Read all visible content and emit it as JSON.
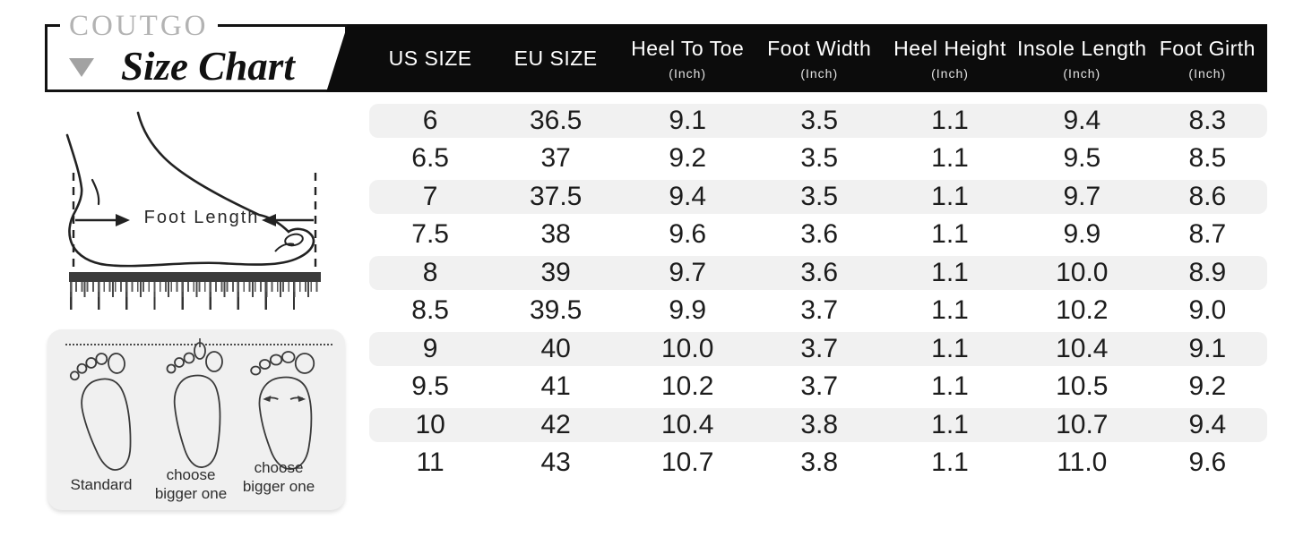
{
  "brand": {
    "name": "COUTGO",
    "title": "Size Chart",
    "dropdown_icon": "triangle-down"
  },
  "foot_length_diagram": {
    "label": "Foot Length"
  },
  "fit_guide": {
    "footprints": [
      {
        "label": "Standard"
      },
      {
        "label": "choose bigger one"
      },
      {
        "label": "choose bigger one"
      }
    ]
  },
  "chart_data": {
    "type": "table",
    "title": "Size Chart",
    "columns": [
      {
        "label": "US SIZE",
        "unit": ""
      },
      {
        "label": "EU SIZE",
        "unit": ""
      },
      {
        "label": "Heel To Toe",
        "unit": "(Inch)"
      },
      {
        "label": "Foot Width",
        "unit": "(Inch)"
      },
      {
        "label": "Heel Height",
        "unit": "(Inch)"
      },
      {
        "label": "Insole Length",
        "unit": "(Inch)"
      },
      {
        "label": "Foot Girth",
        "unit": "(Inch)"
      }
    ],
    "rows": [
      [
        "6",
        "36.5",
        "9.1",
        "3.5",
        "1.1",
        "9.4",
        "8.3"
      ],
      [
        "6.5",
        "37",
        "9.2",
        "3.5",
        "1.1",
        "9.5",
        "8.5"
      ],
      [
        "7",
        "37.5",
        "9.4",
        "3.5",
        "1.1",
        "9.7",
        "8.6"
      ],
      [
        "7.5",
        "38",
        "9.6",
        "3.6",
        "1.1",
        "9.9",
        "8.7"
      ],
      [
        "8",
        "39",
        "9.7",
        "3.6",
        "1.1",
        "10.0",
        "8.9"
      ],
      [
        "8.5",
        "39.5",
        "9.9",
        "3.7",
        "1.1",
        "10.2",
        "9.0"
      ],
      [
        "9",
        "40",
        "10.0",
        "3.7",
        "1.1",
        "10.4",
        "9.1"
      ],
      [
        "9.5",
        "41",
        "10.2",
        "3.7",
        "1.1",
        "10.5",
        "9.2"
      ],
      [
        "10",
        "42",
        "10.4",
        "3.8",
        "1.1",
        "10.7",
        "9.4"
      ],
      [
        "11",
        "43",
        "10.7",
        "3.8",
        "1.1",
        "11.0",
        "9.6"
      ]
    ],
    "layout": {
      "zebra_striping": true,
      "legend": "none",
      "grid": "off"
    },
    "colors": {
      "header_bg": "#0c0c0c",
      "header_text": "#ffffff",
      "row_alt_bg": "#f1f1f1",
      "body_text": "#1c1c1c",
      "brand_gray": "#b3b3b3"
    }
  }
}
